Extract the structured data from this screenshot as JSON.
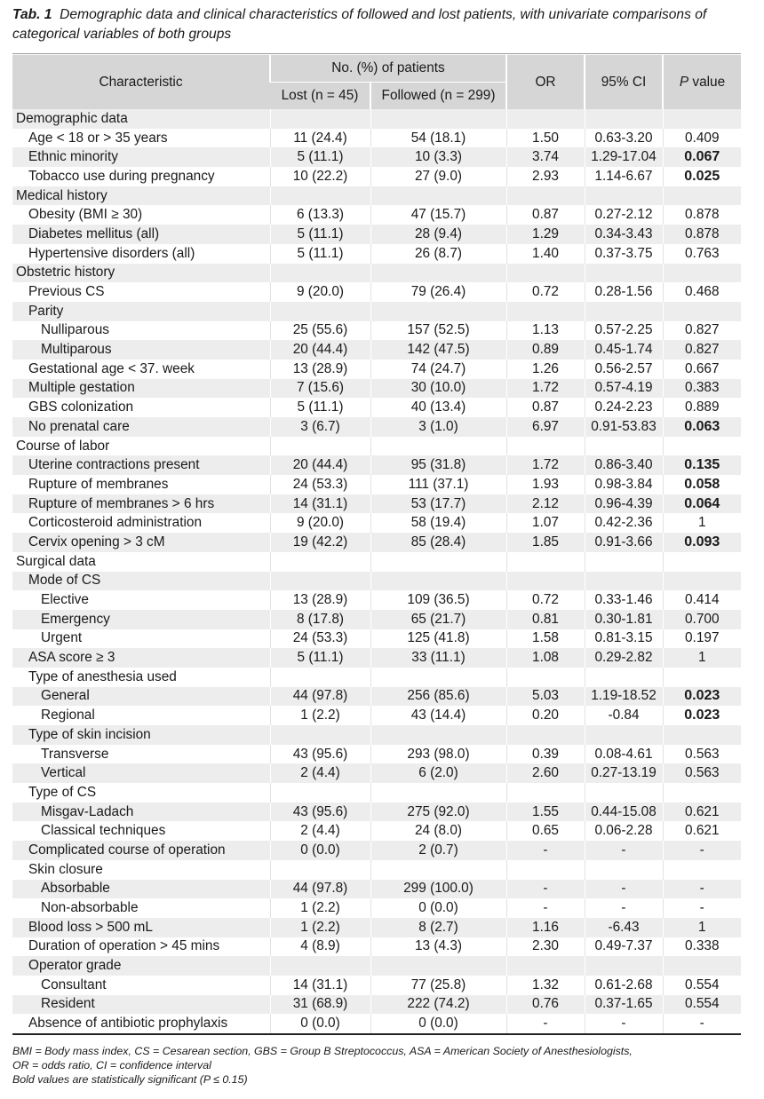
{
  "caption": {
    "label": "Tab. 1",
    "text": "Demographic data and clinical characteristics of followed and lost patients, with univariate comparisons of categorical variables of both groups"
  },
  "header": {
    "characteristic": "Characteristic",
    "group": "No. (%) of patients",
    "lost": "Lost (n = 45)",
    "followed": "Followed (n = 299)",
    "or": "OR",
    "ci": "95% CI",
    "p_italic": "P",
    "p_rest": " value"
  },
  "rows": [
    {
      "label": "Demographic data",
      "indent": 0
    },
    {
      "label": "Age < 18 or > 35 years",
      "indent": 1,
      "lost": "11 (24.4)",
      "followed": "54 (18.1)",
      "or": "1.50",
      "ci": "0.63-3.20",
      "p": "0.409",
      "bold": false
    },
    {
      "label": "Ethnic minority",
      "indent": 1,
      "lost": "5 (11.1)",
      "followed": "10 (3.3)",
      "or": "3.74",
      "ci": "1.29-17.04",
      "p": "0.067",
      "bold": true
    },
    {
      "label": "Tobacco use during pregnancy",
      "indent": 1,
      "lost": "10 (22.2)",
      "followed": "27 (9.0)",
      "or": "2.93",
      "ci": "1.14-6.67",
      "p": "0.025",
      "bold": true
    },
    {
      "label": "Medical history",
      "indent": 0
    },
    {
      "label": "Obesity (BMI ≥ 30)",
      "indent": 1,
      "lost": "6 (13.3)",
      "followed": "47 (15.7)",
      "or": "0.87",
      "ci": "0.27-2.12",
      "p": "0.878",
      "bold": false
    },
    {
      "label": "Diabetes mellitus (all)",
      "indent": 1,
      "lost": "5 (11.1)",
      "followed": "28 (9.4)",
      "or": "1.29",
      "ci": "0.34-3.43",
      "p": "0.878",
      "bold": false
    },
    {
      "label": "Hypertensive disorders (all)",
      "indent": 1,
      "lost": "5 (11.1)",
      "followed": "26 (8.7)",
      "or": "1.40",
      "ci": "0.37-3.75",
      "p": "0.763",
      "bold": false
    },
    {
      "label": "Obstetric history",
      "indent": 0
    },
    {
      "label": "Previous CS",
      "indent": 1,
      "lost": "9 (20.0)",
      "followed": "79 (26.4)",
      "or": "0.72",
      "ci": "0.28-1.56",
      "p": "0.468",
      "bold": false
    },
    {
      "label": "Parity",
      "indent": 1
    },
    {
      "label": "Nulliparous",
      "indent": 2,
      "lost": "25 (55.6)",
      "followed": "157 (52.5)",
      "or": "1.13",
      "ci": "0.57-2.25",
      "p": "0.827",
      "bold": false
    },
    {
      "label": "Multiparous",
      "indent": 2,
      "lost": "20 (44.4)",
      "followed": "142 (47.5)",
      "or": "0.89",
      "ci": "0.45-1.74",
      "p": "0.827",
      "bold": false
    },
    {
      "label": "Gestational age < 37. week",
      "indent": 1,
      "lost": "13 (28.9)",
      "followed": "74 (24.7)",
      "or": "1.26",
      "ci": "0.56-2.57",
      "p": "0.667",
      "bold": false
    },
    {
      "label": "Multiple gestation",
      "indent": 1,
      "lost": "7 (15.6)",
      "followed": "30 (10.0)",
      "or": "1.72",
      "ci": "0.57-4.19",
      "p": "0.383",
      "bold": false
    },
    {
      "label": "GBS colonization",
      "indent": 1,
      "lost": "5 (11.1)",
      "followed": "40 (13.4)",
      "or": "0.87",
      "ci": "0.24-2.23",
      "p": "0.889",
      "bold": false
    },
    {
      "label": "No prenatal care",
      "indent": 1,
      "lost": "3 (6.7)",
      "followed": "3 (1.0)",
      "or": "6.97",
      "ci": "0.91-53.83",
      "p": "0.063",
      "bold": true
    },
    {
      "label": "Course of labor",
      "indent": 0
    },
    {
      "label": "Uterine contractions present",
      "indent": 1,
      "lost": "20 (44.4)",
      "followed": "95 (31.8)",
      "or": "1.72",
      "ci": "0.86-3.40",
      "p": "0.135",
      "bold": true
    },
    {
      "label": "Rupture of membranes",
      "indent": 1,
      "lost": "24 (53.3)",
      "followed": "111 (37.1)",
      "or": "1.93",
      "ci": "0.98-3.84",
      "p": "0.058",
      "bold": true
    },
    {
      "label": "Rupture of membranes > 6 hrs",
      "indent": 1,
      "lost": "14 (31.1)",
      "followed": "53 (17.7)",
      "or": "2.12",
      "ci": "0.96-4.39",
      "p": "0.064",
      "bold": true
    },
    {
      "label": "Corticosteroid administration",
      "indent": 1,
      "lost": "9 (20.0)",
      "followed": "58 (19.4)",
      "or": "1.07",
      "ci": "0.42-2.36",
      "p": "1",
      "bold": false
    },
    {
      "label": "Cervix opening > 3 cM",
      "indent": 1,
      "lost": "19 (42.2)",
      "followed": "85 (28.4)",
      "or": "1.85",
      "ci": "0.91-3.66",
      "p": "0.093",
      "bold": true
    },
    {
      "label": "Surgical data",
      "indent": 0
    },
    {
      "label": "Mode of CS",
      "indent": 1
    },
    {
      "label": "Elective",
      "indent": 2,
      "lost": "13 (28.9)",
      "followed": "109 (36.5)",
      "or": "0.72",
      "ci": "0.33-1.46",
      "p": "0.414",
      "bold": false
    },
    {
      "label": "Emergency",
      "indent": 2,
      "lost": "8 (17.8)",
      "followed": "65 (21.7)",
      "or": "0.81",
      "ci": "0.30-1.81",
      "p": "0.700",
      "bold": false
    },
    {
      "label": "Urgent",
      "indent": 2,
      "lost": "24 (53.3)",
      "followed": "125 (41.8)",
      "or": "1.58",
      "ci": "0.81-3.15",
      "p": "0.197",
      "bold": false
    },
    {
      "label": "ASA score ≥ 3",
      "indent": 1,
      "lost": "5 (11.1)",
      "followed": "33 (11.1)",
      "or": "1.08",
      "ci": "0.29-2.82",
      "p": "1",
      "bold": false
    },
    {
      "label": "Type of anesthesia used",
      "indent": 1
    },
    {
      "label": "General",
      "indent": 2,
      "lost": "44 (97.8)",
      "followed": "256 (85.6)",
      "or": "5.03",
      "ci": "1.19-18.52",
      "p": "0.023",
      "bold": true
    },
    {
      "label": "Regional",
      "indent": 2,
      "lost": "1 (2.2)",
      "followed": "43 (14.4)",
      "or": "0.20",
      "ci": "-0.84",
      "p": "0.023",
      "bold": true
    },
    {
      "label": "Type of skin incision",
      "indent": 1
    },
    {
      "label": "Transverse",
      "indent": 2,
      "lost": "43 (95.6)",
      "followed": "293 (98.0)",
      "or": "0.39",
      "ci": "0.08-4.61",
      "p": "0.563",
      "bold": false
    },
    {
      "label": "Vertical",
      "indent": 2,
      "lost": "2 (4.4)",
      "followed": "6 (2.0)",
      "or": "2.60",
      "ci": "0.27-13.19",
      "p": "0.563",
      "bold": false
    },
    {
      "label": "Type of CS",
      "indent": 1
    },
    {
      "label": "Misgav-Ladach",
      "indent": 2,
      "lost": "43 (95.6)",
      "followed": "275 (92.0)",
      "or": "1.55",
      "ci": "0.44-15.08",
      "p": "0.621",
      "bold": false
    },
    {
      "label": "Classical techniques",
      "indent": 2,
      "lost": "2 (4.4)",
      "followed": "24 (8.0)",
      "or": "0.65",
      "ci": "0.06-2.28",
      "p": "0.621",
      "bold": false
    },
    {
      "label": "Complicated course of operation",
      "indent": 1,
      "lost": "0 (0.0)",
      "followed": "2 (0.7)",
      "or": "-",
      "ci": "-",
      "p": "-",
      "bold": false
    },
    {
      "label": "Skin closure",
      "indent": 1
    },
    {
      "label": "Absorbable",
      "indent": 2,
      "lost": "44 (97.8)",
      "followed": "299 (100.0)",
      "or": "-",
      "ci": "-",
      "p": "-",
      "bold": false
    },
    {
      "label": "Non-absorbable",
      "indent": 2,
      "lost": "1 (2.2)",
      "followed": "0 (0.0)",
      "or": "-",
      "ci": "-",
      "p": "-",
      "bold": false
    },
    {
      "label": "Blood loss > 500 mL",
      "indent": 1,
      "lost": "1 (2.2)",
      "followed": "8 (2.7)",
      "or": "1.16",
      "ci": "-6.43",
      "p": "1",
      "bold": false
    },
    {
      "label": "Duration of operation > 45 mins",
      "indent": 1,
      "lost": "4 (8.9)",
      "followed": "13 (4.3)",
      "or": "2.30",
      "ci": "0.49-7.37",
      "p": "0.338",
      "bold": false
    },
    {
      "label": "Operator grade",
      "indent": 1
    },
    {
      "label": "Consultant",
      "indent": 2,
      "lost": "14 (31.1)",
      "followed": "77 (25.8)",
      "or": "1.32",
      "ci": "0.61-2.68",
      "p": "0.554",
      "bold": false
    },
    {
      "label": "Resident",
      "indent": 2,
      "lost": "31 (68.9)",
      "followed": "222 (74.2)",
      "or": "0.76",
      "ci": "0.37-1.65",
      "p": "0.554",
      "bold": false
    },
    {
      "label": "Absence of antibiotic prophylaxis",
      "indent": 1,
      "lost": "0 (0.0)",
      "followed": "0 (0.0)",
      "or": "-",
      "ci": "-",
      "p": "-",
      "bold": false
    }
  ],
  "footnotes": [
    "BMI = Body mass index, CS = Cesarean section, GBS = Group B Streptococcus, ASA = American Society of Anesthesiologists,",
    "OR = odds ratio, CI = confidence interval",
    "Bold values are statistically significant (P ≤ 0.15)"
  ]
}
